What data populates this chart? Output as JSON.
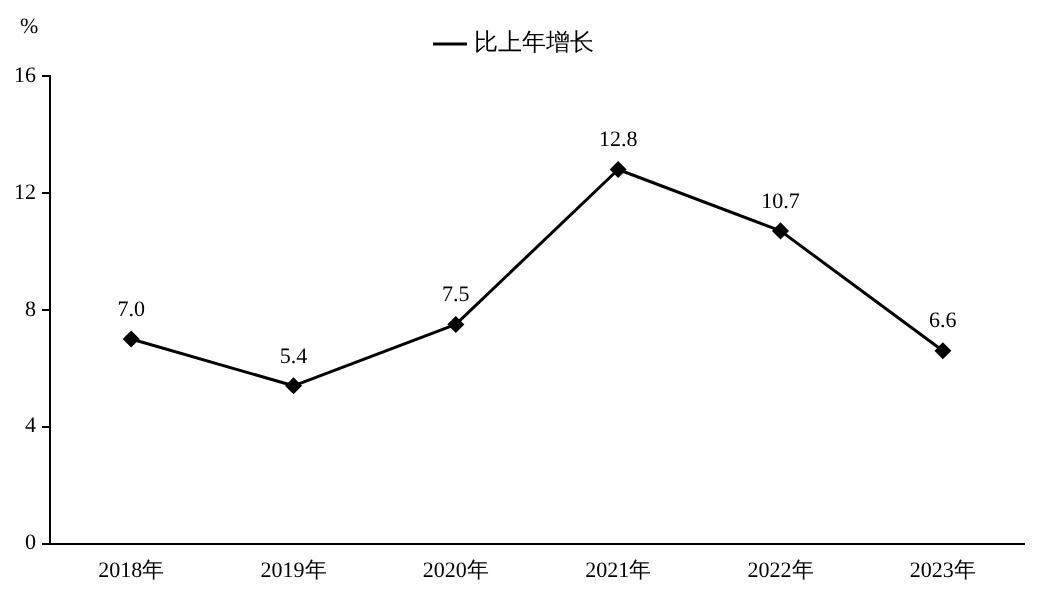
{
  "chart_data": {
    "type": "line",
    "ylabel": "%",
    "categories": [
      "2018年",
      "2019年",
      "2020年",
      "2021年",
      "2022年",
      "2023年"
    ],
    "series": [
      {
        "name": "比上年增长",
        "color": "#000000",
        "values": [
          7.0,
          5.4,
          7.5,
          12.8,
          10.7,
          6.6
        ],
        "value_labels": [
          "7.0",
          "5.4",
          "7.5",
          "12.8",
          "10.7",
          "6.6"
        ]
      }
    ],
    "ylim": [
      0,
      16
    ],
    "yticks": [
      0,
      4,
      8,
      12,
      16
    ],
    "grid": false,
    "legend": "top",
    "marker": "diamond",
    "line_style": "solid"
  }
}
